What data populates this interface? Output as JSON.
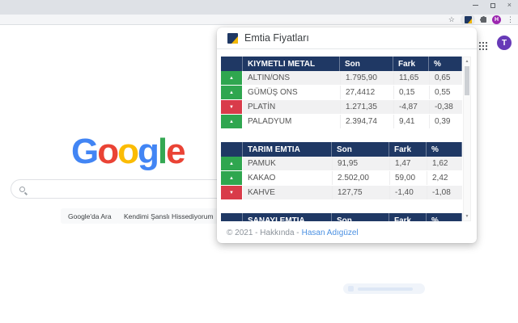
{
  "colors": {
    "navy": "#1F3864",
    "up": "#2FA64F",
    "down": "#D93B4A",
    "link": "#4A90E2",
    "logo": [
      "#4285F4",
      "#EA4335",
      "#FBBC05",
      "#4285F4",
      "#34A853",
      "#EA4335"
    ]
  },
  "icons": {
    "star": "☆",
    "kebab": "⋮",
    "close": "×",
    "trend_up": "▲",
    "trend_down": "▼",
    "scroll_up": "▲",
    "scroll_down": "▼"
  },
  "browser": {
    "profile_initial": "H"
  },
  "page": {
    "logo_letters": [
      "G",
      "o",
      "o",
      "g",
      "l",
      "e"
    ],
    "account_initial": "T",
    "search_button": "Google'da Ara",
    "lucky_button": "Kendimi Şanslı Hissediyorum"
  },
  "popup": {
    "title": "Emtia Fiyatları",
    "tables": [
      {
        "title": "KIYMETLI METAL",
        "cols": [
          "Son",
          "Fark",
          "%"
        ],
        "rows": [
          {
            "name": "ALTIN/ONS",
            "son": "1.795,90",
            "fark": "11,65",
            "pct": "0,65",
            "dir": "up"
          },
          {
            "name": "GÜMÜŞ ONS",
            "son": "27,4412",
            "fark": "0,15",
            "pct": "0,55",
            "dir": "up"
          },
          {
            "name": "PLATİN",
            "son": "1.271,35",
            "fark": "-4,87",
            "pct": "-0,38",
            "dir": "down"
          },
          {
            "name": "PALADYUM",
            "son": "2.394,74",
            "fark": "9,41",
            "pct": "0,39",
            "dir": "up"
          }
        ]
      },
      {
        "title": "TARIM EMTIA",
        "cols": [
          "Son",
          "Fark",
          "%"
        ],
        "rows": [
          {
            "name": "PAMUK",
            "son": "91,95",
            "fark": "1,47",
            "pct": "1,62",
            "dir": "up"
          },
          {
            "name": "KAKAO",
            "son": "2.502,00",
            "fark": "59,00",
            "pct": "2,42",
            "dir": "up"
          },
          {
            "name": "KAHVE",
            "son": "127,75",
            "fark": "-1,40",
            "pct": "-1,08",
            "dir": "down"
          }
        ]
      },
      {
        "title": "SANAYI EMTIA",
        "cols": [
          "Son",
          "Fark",
          "%"
        ],
        "rows": []
      }
    ],
    "footer": {
      "text": "© 2021 - Hakkında -",
      "link": "Hasan Adıgüzel"
    }
  }
}
